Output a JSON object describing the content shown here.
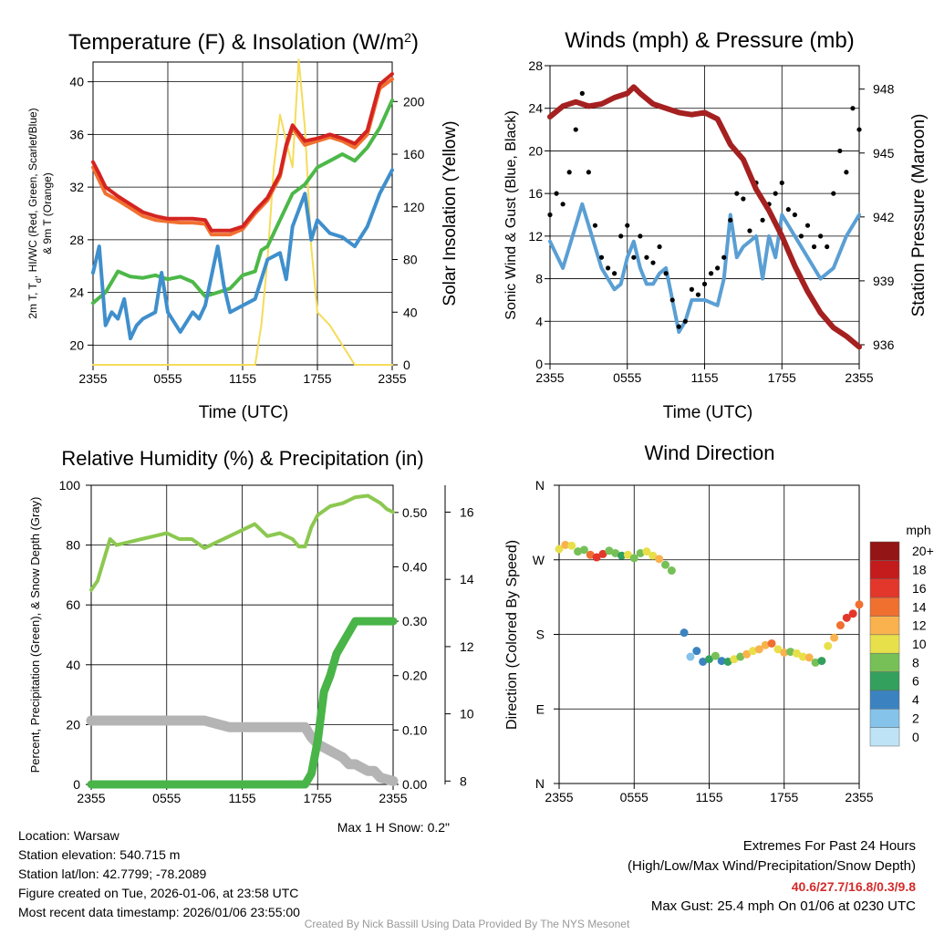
{
  "colors": {
    "temp": "#d42420",
    "dewpoint": "#3f8fcc",
    "heat_index": "#4cb848",
    "temp9m": "#f07030",
    "solar": "#f5dc5a",
    "wind": "#5a9fd4",
    "gust": "#000000",
    "pressure": "#a52020",
    "rh": "#8cc850",
    "precip": "#49b448",
    "snow": "#b4b4b4",
    "axis": "#000000",
    "credit": "#999999",
    "extremes_values": "#d42b2b"
  },
  "x_ticks": [
    "2355",
    "0555",
    "1155",
    "1755",
    "2355"
  ],
  "chart_data": [
    {
      "id": "temperature",
      "type": "line",
      "title": "Temperature (F) & Insolation (W/m",
      "title_sup": "2",
      "title_close": ")",
      "xlabel": "Time (UTC)",
      "ylabel_left": [
        "2m T, T",
        "d",
        ", HI/WC (Red, Green, Scarlet/Blue)",
        "& 9m T (Orange)"
      ],
      "ylabel_right": "Solar Insolation (Yellow)",
      "ylim": [
        18.5,
        41.5
      ],
      "ylim_right": [
        0,
        230
      ],
      "yticks": [
        "20",
        "24",
        "28",
        "32",
        "36",
        "40"
      ],
      "yticks_right": [
        "0",
        "40",
        "80",
        "120",
        "160",
        "200"
      ],
      "series": [
        {
          "name": "Solar Insolation",
          "axis": "right",
          "color": "solar",
          "x": [
            0,
            9,
            11,
            12,
            13,
            13.5,
            14,
            14.5,
            15,
            15.5,
            16,
            16.5,
            17,
            17.5,
            18,
            19,
            20,
            21,
            24
          ],
          "y": [
            0,
            0,
            0,
            0,
            0,
            30,
            80,
            150,
            190,
            170,
            150,
            232,
            180,
            90,
            40,
            30,
            15,
            0,
            0
          ]
        },
        {
          "name": "9m T",
          "color": "temp9m",
          "x": [
            0,
            0.5,
            1,
            2,
            3,
            4,
            5,
            6,
            7,
            8,
            9,
            9.5,
            10,
            11,
            12,
            13,
            14,
            15,
            15.5,
            16,
            17,
            18,
            19,
            20,
            21,
            22,
            23,
            24
          ],
          "y": [
            33.5,
            32.5,
            31.5,
            31.0,
            30.4,
            29.8,
            29.5,
            29.4,
            29.3,
            29.3,
            29.2,
            28.4,
            28.4,
            28.4,
            28.8,
            30.0,
            31.0,
            32.8,
            35.0,
            36.5,
            35.2,
            35.5,
            35.8,
            35.5,
            35.0,
            36.0,
            39.5,
            40.2
          ]
        },
        {
          "name": "2m T",
          "color": "temp",
          "x": [
            0,
            0.5,
            1,
            2,
            3,
            4,
            5,
            6,
            7,
            8,
            9,
            9.5,
            10,
            11,
            12,
            13,
            14,
            15,
            15.5,
            16,
            17,
            18,
            19,
            20,
            21,
            22,
            23,
            24
          ],
          "y": [
            33.9,
            33.0,
            32.0,
            31.3,
            30.7,
            30.1,
            29.8,
            29.6,
            29.6,
            29.6,
            29.5,
            28.7,
            28.7,
            28.7,
            29.0,
            30.2,
            31.2,
            33.0,
            35.2,
            36.7,
            35.5,
            35.7,
            36.0,
            35.7,
            35.3,
            36.3,
            39.8,
            40.6
          ]
        },
        {
          "name": "Heat Index / Wind Chill",
          "color": "heat_index",
          "x": [
            0,
            0.5,
            1,
            2,
            3,
            4,
            5,
            6,
            7,
            8,
            9,
            10,
            11,
            12,
            13,
            13.5,
            14,
            15,
            16,
            17,
            18,
            19,
            20,
            21,
            22,
            23,
            24
          ],
          "y": [
            23.2,
            23.6,
            24.0,
            25.6,
            25.2,
            25.1,
            25.3,
            25.0,
            25.2,
            24.8,
            23.7,
            24.0,
            24.3,
            25.3,
            25.6,
            27.2,
            27.5,
            29.5,
            31.5,
            32.2,
            33.5,
            34.0,
            34.5,
            34.0,
            35.0,
            36.5,
            38.6
          ]
        },
        {
          "name": "Dewpoint",
          "color": "dewpoint",
          "x": [
            0,
            0.5,
            1,
            1.5,
            2,
            2.5,
            3,
            3.5,
            4,
            5,
            5.5,
            6,
            7,
            8,
            8.5,
            9,
            10,
            10.5,
            11,
            12,
            13,
            14,
            15,
            15.5,
            16,
            17,
            17.5,
            18,
            19,
            20,
            21,
            22,
            23,
            24
          ],
          "y": [
            25.5,
            27.5,
            21.5,
            22.5,
            22.0,
            23.5,
            20.5,
            21.5,
            22.0,
            22.5,
            25.5,
            22.5,
            21.0,
            22.5,
            22.0,
            23.0,
            27.5,
            24.5,
            22.5,
            23.0,
            23.5,
            26.5,
            27.0,
            25.0,
            29.0,
            31.5,
            28.0,
            29.5,
            28.5,
            28.2,
            27.5,
            29.0,
            31.5,
            33.3
          ]
        }
      ]
    },
    {
      "id": "winds",
      "type": "line",
      "title": "Winds (mph) & Pressure (mb)",
      "xlabel": "Time (UTC)",
      "ylabel_left": "Sonic Wind & Gust (Blue, Black)",
      "ylabel_right": "Station Pressure (Maroon)",
      "ylim": [
        0,
        28
      ],
      "ylim_right": [
        935.1,
        949.1
      ],
      "yticks": [
        "0",
        "4",
        "8",
        "12",
        "16",
        "20",
        "24",
        "28"
      ],
      "yticks_right": [
        "936",
        "939",
        "942",
        "945",
        "948"
      ],
      "series": [
        {
          "name": "Sonic Wind",
          "color": "wind",
          "x": [
            0,
            1,
            2,
            2.5,
            3,
            4,
            5,
            5.5,
            6,
            6.5,
            7,
            7.5,
            8,
            8.5,
            9,
            10,
            10.5,
            11,
            12,
            13,
            13.5,
            14,
            14.5,
            15,
            16,
            16.5,
            17,
            17.5,
            18,
            19,
            20,
            21,
            22,
            23,
            24
          ],
          "y": [
            11.5,
            9,
            13,
            15,
            13,
            9,
            7,
            7.5,
            10,
            11.5,
            9,
            7.5,
            7.5,
            8.5,
            9,
            3,
            4,
            6,
            6,
            5.5,
            8,
            14,
            10,
            11,
            12,
            8,
            12,
            10,
            14,
            12,
            10,
            8,
            9,
            12,
            14
          ]
        },
        {
          "name": "Gust",
          "color": "gust",
          "style": "dots",
          "x": [
            0,
            0.5,
            1,
            1.5,
            2,
            2.5,
            3,
            3.5,
            4,
            4.5,
            5,
            5.5,
            6,
            6.5,
            7,
            7.5,
            8,
            8.5,
            9,
            9.5,
            10,
            10.5,
            11,
            11.5,
            12,
            12.5,
            13,
            13.5,
            14,
            14.5,
            15,
            15.5,
            16,
            16.5,
            17,
            17.5,
            18,
            18.5,
            19,
            19.5,
            20,
            20.5,
            21,
            21.5,
            22,
            22.5,
            23,
            23.5,
            24
          ],
          "y": [
            14,
            16,
            15,
            18,
            22,
            25.4,
            18,
            13,
            10,
            9,
            8.5,
            12,
            13,
            10,
            12,
            10,
            9.5,
            11,
            8.5,
            6,
            3.5,
            4,
            7,
            6.5,
            7.5,
            8.5,
            9,
            10,
            13.5,
            16,
            15.5,
            12.5,
            17,
            13.5,
            15,
            16,
            17,
            14.5,
            14,
            12,
            13,
            11,
            12,
            11,
            16,
            20,
            18,
            24,
            22
          ]
        },
        {
          "name": "Station Pressure",
          "color": "pressure",
          "axis": "right",
          "x": [
            0,
            1,
            2,
            3,
            4,
            5,
            6,
            6.5,
            7,
            8,
            9,
            10,
            11,
            12,
            13,
            14,
            15,
            16,
            17,
            18,
            19,
            20,
            21,
            22,
            23,
            24
          ],
          "y": [
            946.7,
            947.2,
            947.4,
            947.2,
            947.3,
            947.6,
            947.8,
            948.1,
            947.8,
            947.3,
            947.1,
            946.9,
            946.8,
            946.9,
            946.6,
            945.4,
            944.7,
            943.3,
            942.3,
            941.1,
            939.7,
            938.5,
            937.5,
            936.8,
            936.4,
            935.9
          ]
        }
      ]
    },
    {
      "id": "humidity",
      "type": "line",
      "title": "Relative Humidity (%) & Precipitation (in)",
      "ylabel_left": "Percent, Precipitation (Green), & Snow Depth (Gray)",
      "ylim": [
        0,
        100
      ],
      "ylim_precip": [
        0,
        0.55
      ],
      "ylim_snow": [
        7.9,
        16.8
      ],
      "yticks": [
        "0",
        "20",
        "40",
        "60",
        "80",
        "100"
      ],
      "yticks_precip": [
        "0.00",
        "0.10",
        "0.20",
        "0.30",
        "0.40",
        "0.50"
      ],
      "yticks_snow": [
        "8",
        "10",
        "12",
        "14",
        "16"
      ],
      "annotation": "Max 1 H Snow: 0.2\"",
      "series": [
        {
          "name": "Relative Humidity",
          "color": "rh",
          "x": [
            0,
            0.5,
            1,
            1.5,
            2,
            3,
            4,
            5,
            6,
            7,
            8,
            9,
            10,
            11,
            12,
            13,
            14,
            15,
            16,
            16.5,
            17,
            17.5,
            18,
            19,
            20,
            21,
            22,
            23,
            23.5,
            24
          ],
          "y": [
            65,
            68,
            75,
            82,
            80,
            81,
            82,
            83,
            84,
            82,
            82,
            79,
            81,
            83,
            85,
            87,
            83,
            84,
            82,
            79.5,
            79.5,
            86,
            90,
            93,
            94,
            96,
            96.5,
            94,
            92,
            91
          ]
        },
        {
          "name": "Precipitation",
          "color": "precip",
          "style": "thick",
          "x": [
            0,
            17,
            17.5,
            18,
            18.5,
            19,
            19.5,
            20,
            20.5,
            21,
            22,
            23,
            24
          ],
          "y": [
            0,
            0,
            0.02,
            0.08,
            0.17,
            0.2,
            0.24,
            0.26,
            0.28,
            0.3,
            0.3,
            0.3,
            0.3
          ]
        },
        {
          "name": "Snow Depth",
          "color": "snow",
          "style": "thick",
          "x": [
            0,
            6,
            9,
            10,
            11,
            12,
            17,
            17.5,
            18,
            19,
            19.5,
            20,
            20.5,
            21,
            21.5,
            22,
            22.5,
            23,
            24
          ],
          "y": [
            9.8,
            9.8,
            9.8,
            9.7,
            9.6,
            9.6,
            9.6,
            9.3,
            9.1,
            8.9,
            8.8,
            8.7,
            8.5,
            8.5,
            8.4,
            8.3,
            8.3,
            8.1,
            8.0
          ]
        }
      ]
    },
    {
      "id": "wind_direction",
      "type": "scatter",
      "title": "Wind Direction",
      "ylabel_left": "Direction (Colored By Speed)",
      "yticks": [
        "N",
        "E",
        "S",
        "W",
        "N"
      ],
      "ylim": [
        0,
        360
      ],
      "colorbar_title": "mph",
      "colorbar_labels": [
        "0",
        "2",
        "4",
        "6",
        "8",
        "10",
        "12",
        "14",
        "16",
        "18",
        "20+"
      ],
      "colorbar_colors": [
        "#bfe3f6",
        "#85c3ea",
        "#3b83c0",
        "#33a05d",
        "#77c058",
        "#e8e04a",
        "#f9b24e",
        "#f07030",
        "#e3372c",
        "#c41c1c",
        "#931515"
      ],
      "points": {
        "x": [
          0,
          0.5,
          1,
          1.5,
          2,
          2.5,
          3,
          3.5,
          4,
          4.5,
          5,
          5.5,
          6,
          6.5,
          7,
          7.5,
          8,
          8.5,
          9,
          10,
          10.5,
          11,
          11.5,
          12,
          12.5,
          13,
          13.5,
          14,
          14.5,
          15,
          15.5,
          16,
          16.5,
          17,
          17.5,
          18,
          18.5,
          19,
          19.5,
          20,
          20.5,
          21,
          21.5,
          22,
          22.5,
          23,
          23.5,
          24
        ],
        "y": [
          283,
          288,
          287,
          280,
          282,
          276,
          273,
          277,
          281,
          278,
          275,
          276,
          272,
          278,
          280,
          275,
          271,
          264,
          257,
          182,
          153,
          160,
          147,
          150,
          154,
          148,
          147,
          150,
          153,
          156,
          160,
          162,
          167,
          169,
          162,
          158,
          159,
          157,
          153,
          152,
          146,
          148,
          166,
          176,
          191,
          200,
          205,
          216
        ],
        "speed": [
          9,
          11,
          9,
          8,
          7,
          14,
          15,
          16,
          7,
          8,
          6,
          9,
          7,
          8,
          10,
          9,
          11,
          8,
          8,
          3,
          2,
          4,
          3,
          5,
          7,
          4,
          6,
          9,
          8,
          12,
          10,
          11,
          12,
          14,
          9,
          12,
          7,
          9,
          10,
          11,
          8,
          6,
          10,
          12,
          14,
          15,
          16,
          14
        ]
      }
    }
  ],
  "location": {
    "lines": [
      "Location: Warsaw",
      "Station elevation: 540.715 m",
      "Station lat/lon: 42.7799; -78.2089",
      "Figure created on Tue, 2026-01-06, at 23:58 UTC",
      "Most recent data timestamp: 2026/01/06 23:55:00"
    ]
  },
  "extremes": {
    "title": "Extremes For Past 24 Hours",
    "subtitle": "(High/Low/Max Wind/Precipitation/Snow Depth)",
    "values": "40.6/27.7/16.8/0.3/9.8",
    "max_gust": "Max Gust: 25.4 mph On 01/06 at 0230 UTC"
  },
  "credit": "Created By Nick Bassill Using Data Provided By The NYS Mesonet"
}
